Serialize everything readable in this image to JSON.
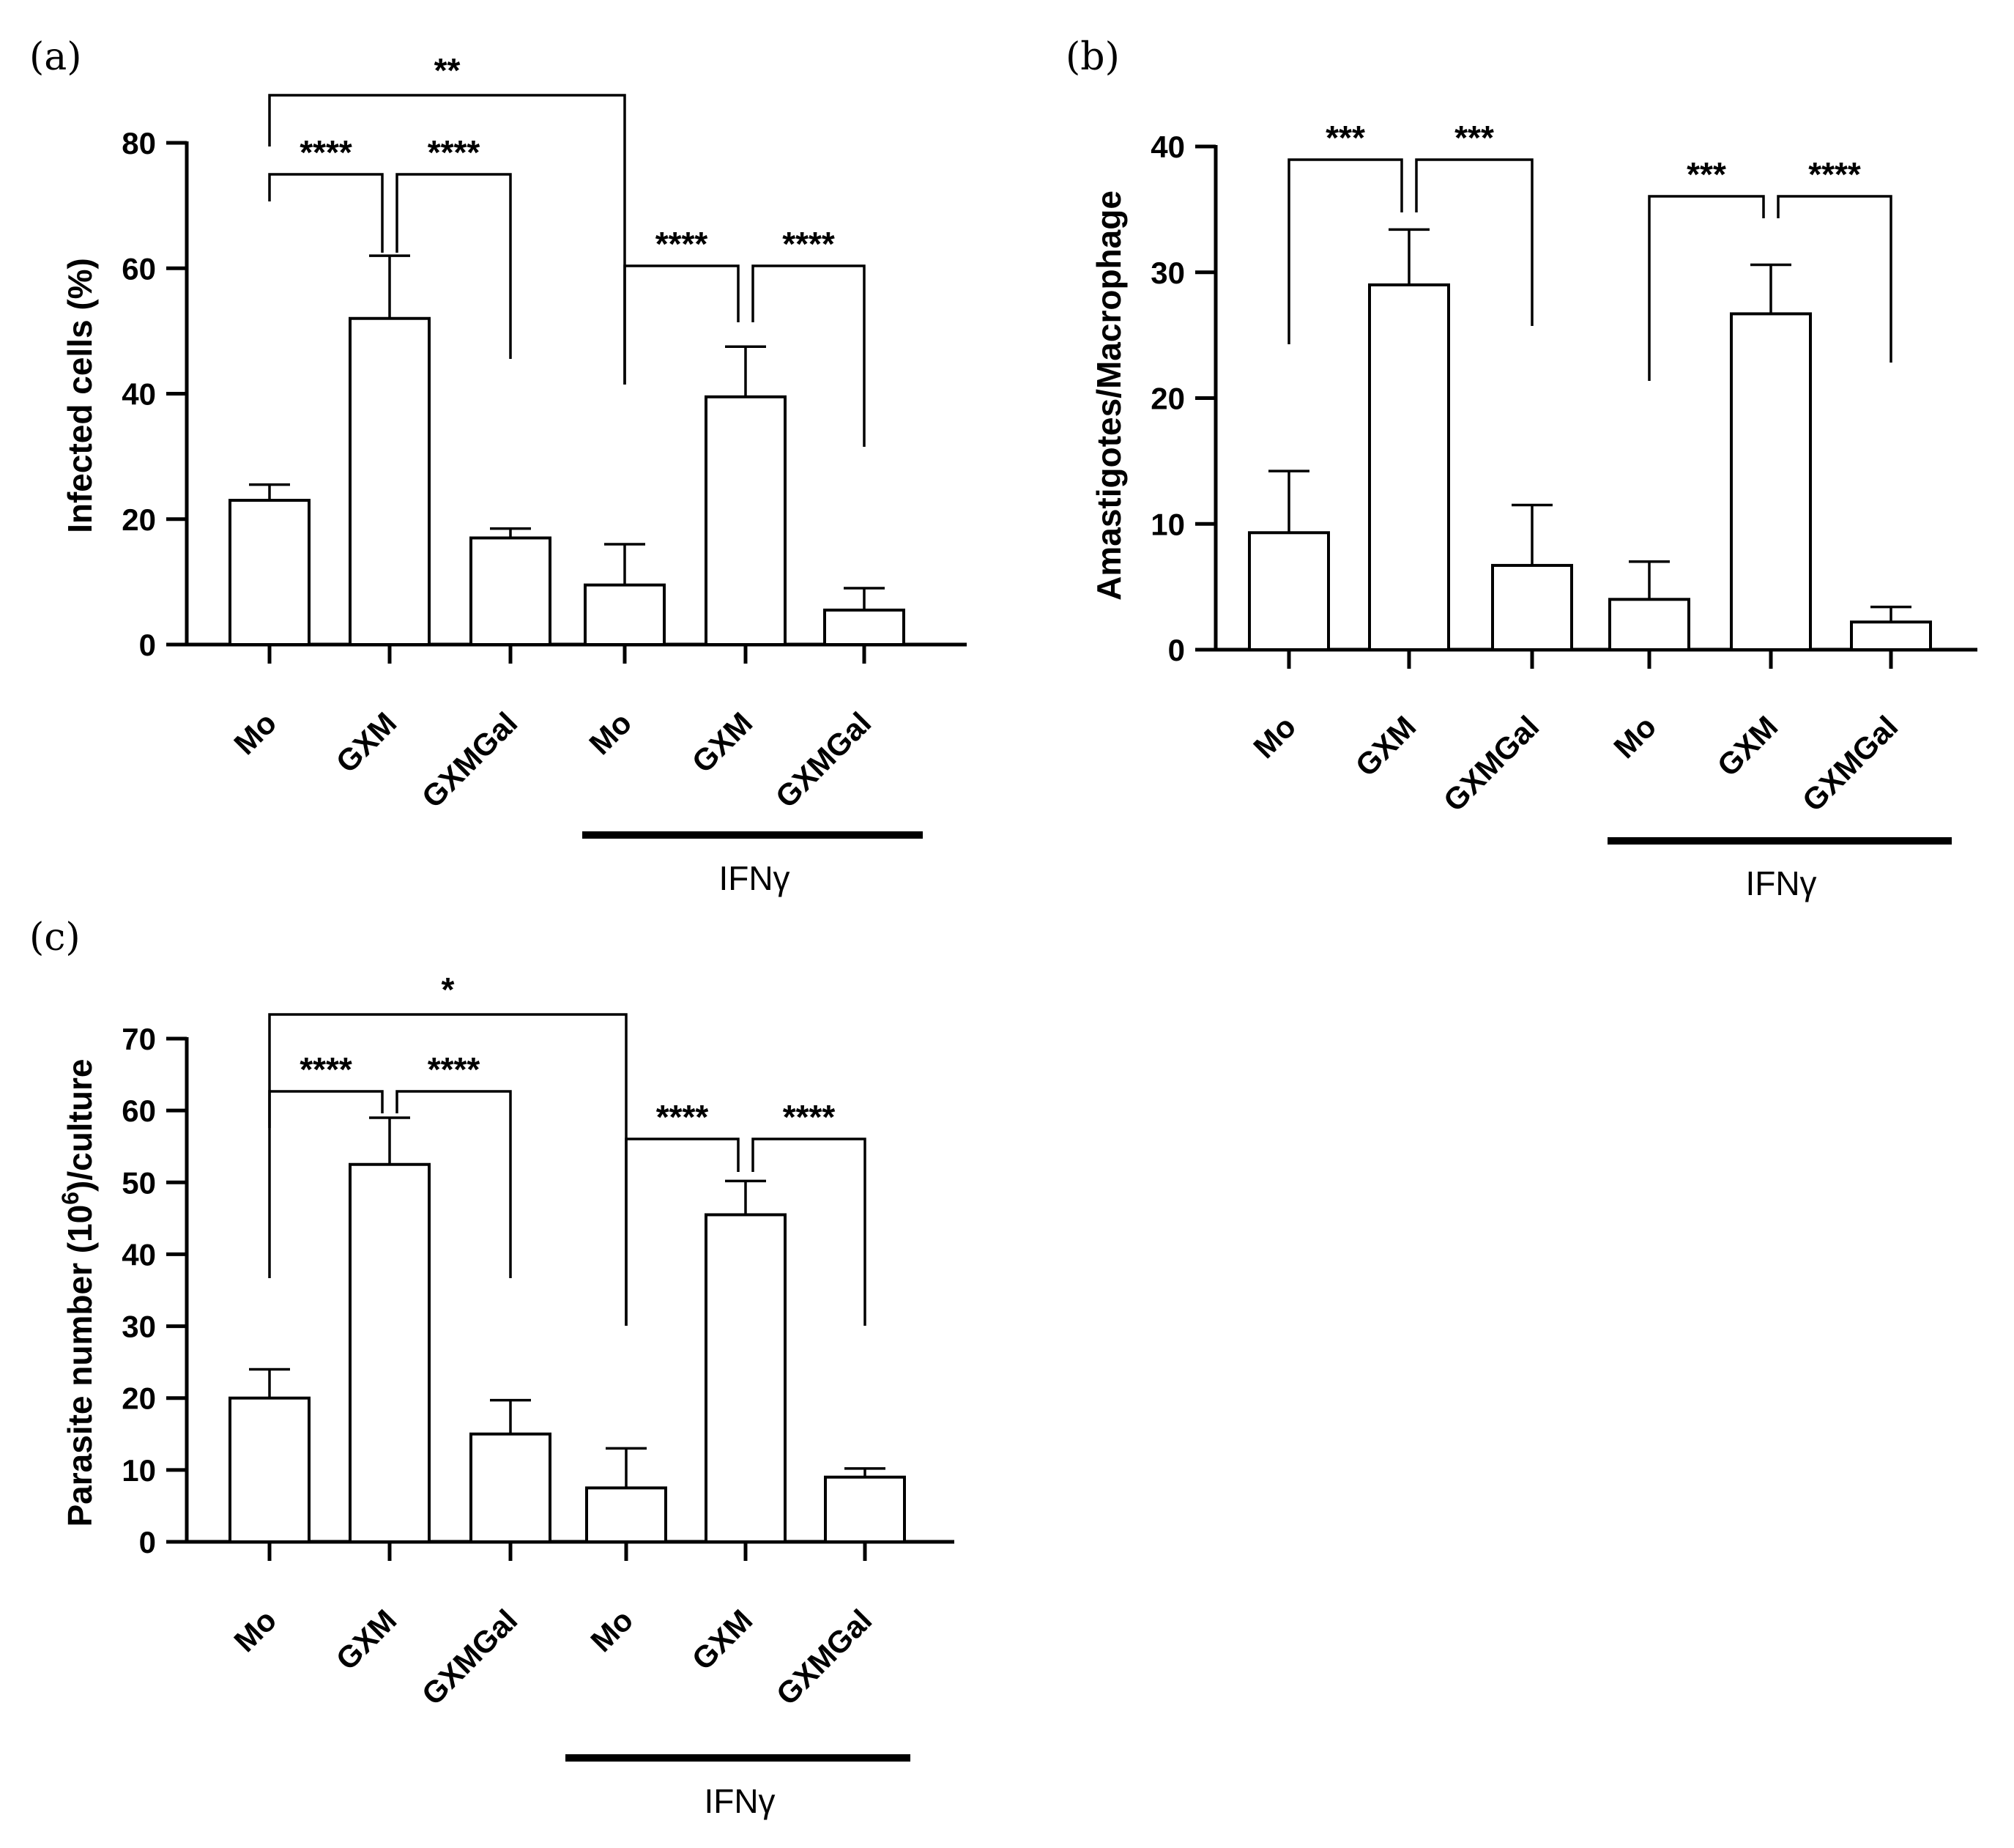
{
  "chart_data": [
    {
      "panel": "(a)",
      "type": "bar",
      "ylabel": "Infected cells (%)",
      "ylim": [
        0,
        80
      ],
      "yticks": [
        "0",
        "20",
        "40",
        "60",
        "80"
      ],
      "categories": [
        "Mo",
        "GXM",
        "GXMGal",
        "Mo",
        "GXM",
        "GXMGal"
      ],
      "values": [
        23,
        52,
        17,
        9.5,
        39.5,
        5.5
      ],
      "errors": [
        2.5,
        10,
        1.5,
        6.5,
        8,
        3.5
      ],
      "group_label": "IFNγ",
      "group_categories": [
        3,
        5
      ],
      "significance": [
        {
          "from": 0,
          "to": 3,
          "label": "**",
          "level": 0
        },
        {
          "from": 0,
          "to": 1,
          "label": "****",
          "level": 1
        },
        {
          "from": 1,
          "to": 2,
          "label": "****",
          "level": 1
        },
        {
          "from": 3,
          "to": 4,
          "label": "****",
          "level": 1
        },
        {
          "from": 4,
          "to": 5,
          "label": "****",
          "level": 1
        }
      ]
    },
    {
      "panel": "(b)",
      "type": "bar",
      "ylabel": "Amastigotes/Macrophage",
      "ylim": [
        0,
        40
      ],
      "yticks": [
        "0",
        "10",
        "20",
        "30",
        "40"
      ],
      "categories": [
        "Mo",
        "GXM",
        "GXMGal",
        "Mo",
        "GXM",
        "GXMGal"
      ],
      "values": [
        9.3,
        29,
        6.7,
        4,
        26.7,
        2.2
      ],
      "errors": [
        4.9,
        4.4,
        4.8,
        3,
        3.9,
        1.2
      ],
      "group_label": "IFNγ",
      "group_categories": [
        3,
        5
      ],
      "significance": [
        {
          "from": 0,
          "to": 1,
          "label": "***",
          "level": 1
        },
        {
          "from": 1,
          "to": 2,
          "label": "***",
          "level": 1
        },
        {
          "from": 3,
          "to": 4,
          "label": "***",
          "level": 1
        },
        {
          "from": 4,
          "to": 5,
          "label": "****",
          "level": 1
        }
      ]
    },
    {
      "panel": "(c)",
      "type": "bar",
      "ylabel_main": "Parasite number (10",
      "ylabel_sup": "6",
      "ylabel_tail": ")/culture",
      "ylim": [
        0,
        70
      ],
      "yticks": [
        "0",
        "10",
        "20",
        "30",
        "40",
        "50",
        "60",
        "70"
      ],
      "categories": [
        "Mo",
        "GXM",
        "GXMGal",
        "Mo",
        "GXM",
        "GXMGal"
      ],
      "values": [
        20,
        52.5,
        15,
        7.5,
        45.5,
        9
      ],
      "errors": [
        4,
        6.5,
        4.7,
        5.5,
        4.7,
        1.2
      ],
      "group_label": "IFNγ",
      "group_categories": [
        3,
        5
      ],
      "significance": [
        {
          "from": 0,
          "to": 3,
          "label": "*",
          "level": 0
        },
        {
          "from": 0,
          "to": 1,
          "label": "****",
          "level": 1
        },
        {
          "from": 1,
          "to": 2,
          "label": "****",
          "level": 1
        },
        {
          "from": 3,
          "to": 4,
          "label": "****",
          "level": 1
        },
        {
          "from": 4,
          "to": 5,
          "label": "****",
          "level": 1
        }
      ]
    }
  ]
}
